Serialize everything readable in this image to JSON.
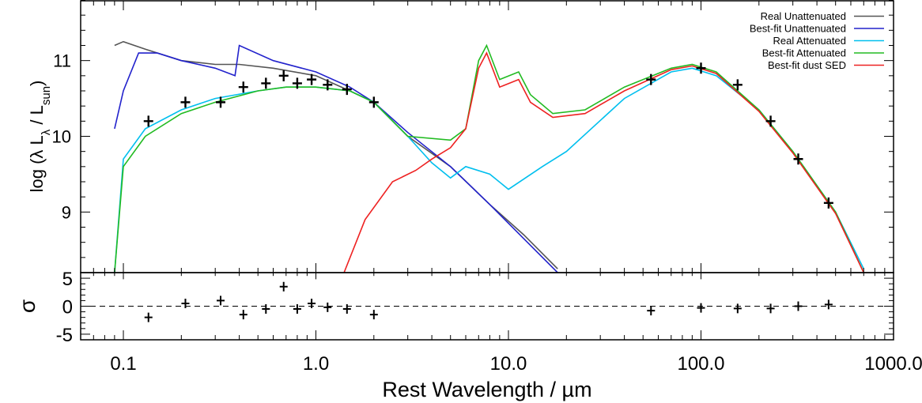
{
  "chart_data": [
    {
      "type": "line",
      "xlabel": "Rest Wavelength / µm",
      "ylabel": "log (λ L_λ / L_sun)",
      "x_scale": "log",
      "xlim": [
        0.06,
        1000
      ],
      "ylim": [
        8.2,
        11.8
      ],
      "x_ticks": [
        {
          "value": 0.1,
          "label": "0.1"
        },
        {
          "value": 1,
          "label": "1.0"
        },
        {
          "value": 10,
          "label": "10.0"
        },
        {
          "value": 100,
          "label": "100.0"
        },
        {
          "value": 1000,
          "label": "1000.0"
        }
      ],
      "y_ticks": [
        {
          "value": 9,
          "label": "9"
        },
        {
          "value": 10,
          "label": "10"
        },
        {
          "value": 11,
          "label": "11"
        }
      ],
      "legend_position": "top-right",
      "series": [
        {
          "name": "Real Unattenuated",
          "color": "#555555",
          "x": [
            0.09,
            0.1,
            0.13,
            0.2,
            0.3,
            0.4,
            0.6,
            1.0,
            1.5,
            2.0,
            3.0,
            5.0,
            8.0,
            12.0,
            18.0
          ],
          "y": [
            11.2,
            11.25,
            11.15,
            11.0,
            10.95,
            10.95,
            10.9,
            10.8,
            10.6,
            10.45,
            10.0,
            9.6,
            9.1,
            8.7,
            8.25
          ]
        },
        {
          "name": "Best-fit Unattenuated",
          "color": "#2222cc",
          "x": [
            0.09,
            0.1,
            0.12,
            0.15,
            0.2,
            0.3,
            0.38,
            0.4,
            0.6,
            1.0,
            1.5,
            2.0,
            3.0,
            5.0,
            8.0,
            12.0,
            18.0
          ],
          "y": [
            10.1,
            10.6,
            11.1,
            11.1,
            11.0,
            10.9,
            10.8,
            11.2,
            11.0,
            10.85,
            10.65,
            10.45,
            10.05,
            9.6,
            9.1,
            8.65,
            8.2
          ]
        },
        {
          "name": "Real Attenuated",
          "color": "#00bfee",
          "x": [
            0.09,
            0.1,
            0.13,
            0.2,
            0.3,
            0.5,
            0.7,
            1.0,
            1.5,
            2.0,
            3.0,
            4.0,
            5.0,
            6.0,
            8.0,
            10.0,
            15.0,
            20.0,
            40.0,
            70.0,
            90.0,
            120.0,
            200.0,
            300.0,
            400.0,
            500.0,
            700.0
          ],
          "y": [
            8.2,
            9.7,
            10.1,
            10.35,
            10.5,
            10.6,
            10.65,
            10.65,
            10.6,
            10.45,
            10.0,
            9.65,
            9.45,
            9.6,
            9.5,
            9.3,
            9.6,
            9.8,
            10.5,
            10.85,
            10.9,
            10.8,
            10.35,
            9.8,
            9.35,
            9.0,
            8.25
          ]
        },
        {
          "name": "Best-fit Attenuated",
          "color": "#22bb22",
          "x": [
            0.09,
            0.1,
            0.13,
            0.2,
            0.3,
            0.5,
            0.7,
            1.0,
            1.5,
            2.0,
            3.0,
            5.0,
            6.0,
            7.0,
            7.7,
            9.0,
            11.3,
            13.0,
            17.0,
            25.0,
            40.0,
            70.0,
            90.0,
            120.0,
            200.0,
            300.0,
            400.0,
            500.0,
            700.0
          ],
          "y": [
            8.2,
            9.6,
            10.0,
            10.3,
            10.45,
            10.6,
            10.65,
            10.65,
            10.6,
            10.45,
            10.0,
            9.95,
            10.1,
            11.0,
            11.2,
            10.75,
            10.85,
            10.55,
            10.3,
            10.35,
            10.65,
            10.9,
            10.95,
            10.85,
            10.35,
            9.8,
            9.35,
            9.0,
            8.2
          ]
        },
        {
          "name": "Best-fit dust SED",
          "color": "#ee2222",
          "x": [
            1.4,
            1.8,
            2.5,
            3.3,
            4.0,
            5.0,
            6.0,
            7.0,
            7.7,
            9.0,
            11.3,
            13.0,
            17.0,
            25.0,
            40.0,
            70.0,
            90.0,
            120.0,
            200.0,
            300.0,
            400.0,
            500.0,
            700.0
          ],
          "y": [
            8.2,
            8.9,
            9.4,
            9.55,
            9.7,
            9.85,
            10.1,
            10.9,
            11.1,
            10.65,
            10.75,
            10.45,
            10.25,
            10.3,
            10.6,
            10.88,
            10.93,
            10.83,
            10.33,
            9.78,
            9.33,
            8.98,
            8.2
          ]
        }
      ],
      "photometry": {
        "x": [
          0.135,
          0.21,
          0.32,
          0.42,
          0.55,
          0.68,
          0.8,
          0.95,
          1.15,
          1.45,
          2.0,
          55.0,
          100.0,
          155.0,
          230.0,
          320.0,
          460.0
        ],
        "y": [
          10.2,
          10.45,
          10.45,
          10.65,
          10.7,
          10.8,
          10.7,
          10.75,
          10.68,
          10.62,
          10.45,
          10.75,
          10.9,
          10.68,
          10.2,
          9.7,
          9.12
        ]
      }
    },
    {
      "type": "scatter",
      "ylabel": "σ",
      "ylim": [
        -6,
        6
      ],
      "y_ticks": [
        {
          "value": 5,
          "label": "5"
        },
        {
          "value": 0,
          "label": "0"
        },
        {
          "value": -5,
          "label": "-5"
        }
      ],
      "zero_line": true,
      "x": [
        0.135,
        0.21,
        0.32,
        0.42,
        0.55,
        0.68,
        0.8,
        0.95,
        1.15,
        1.45,
        2.0,
        55.0,
        100.0,
        155.0,
        230.0,
        320.0,
        460.0
      ],
      "y": [
        -2.0,
        0.5,
        1.0,
        -1.5,
        -0.5,
        3.5,
        -0.5,
        0.5,
        -0.2,
        -0.5,
        -1.5,
        -0.8,
        -0.3,
        -0.4,
        -0.4,
        0.0,
        0.3
      ]
    }
  ]
}
